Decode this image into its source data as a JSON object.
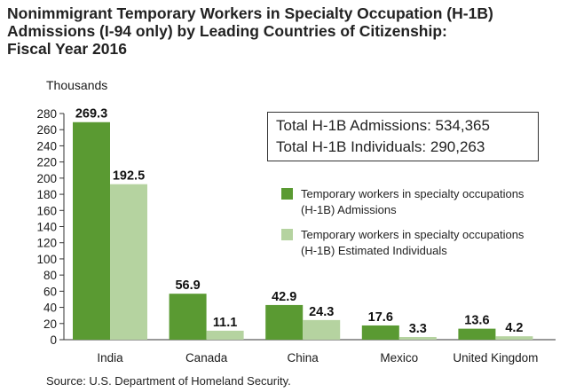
{
  "title_lines": [
    "Nonimmigrant Temporary Workers in Specialty Occupation (H-1B)",
    "Admissions (I-94 only) by Leading Countries of Citizenship:",
    "Fiscal Year 2016"
  ],
  "totals": {
    "admissions": "Total H-1B Admissions: 534,365",
    "individuals": "Total H-1B Individuals: 290,263"
  },
  "source": "Source: U.S. Department of Homeland Security.",
  "colors": {
    "admissions": "#5a9a32",
    "individuals": "#b5d3a0"
  },
  "chart_data": {
    "type": "bar",
    "ylabel": "Thousands",
    "ylim": [
      0,
      280
    ],
    "yticks": [
      0,
      20,
      40,
      60,
      80,
      100,
      120,
      140,
      160,
      180,
      200,
      220,
      240,
      260,
      280
    ],
    "categories": [
      "India",
      "Canada",
      "China",
      "Mexico",
      "United Kingdom"
    ],
    "series": [
      {
        "name": "Temporary workers in specialty occupations (H-1B) Admissions",
        "legend_lines": [
          "Temporary workers in specialty occupations",
          "(H-1B) Admissions"
        ],
        "values": [
          269.3,
          56.9,
          42.9,
          17.6,
          13.6
        ],
        "labels": [
          "269.3",
          "56.9",
          "42.9",
          "17.6",
          "13.6"
        ]
      },
      {
        "name": "Temporary workers in specialty occupations (H-1B) Estimated Individuals",
        "legend_lines": [
          "Temporary workers in specialty occupations",
          "(H-1B) Estimated Individuals"
        ],
        "values": [
          192.5,
          11.1,
          24.3,
          3.3,
          4.2
        ],
        "labels": [
          "192.5",
          "11.1",
          "24.3",
          "3.3",
          "4.2"
        ]
      }
    ]
  }
}
